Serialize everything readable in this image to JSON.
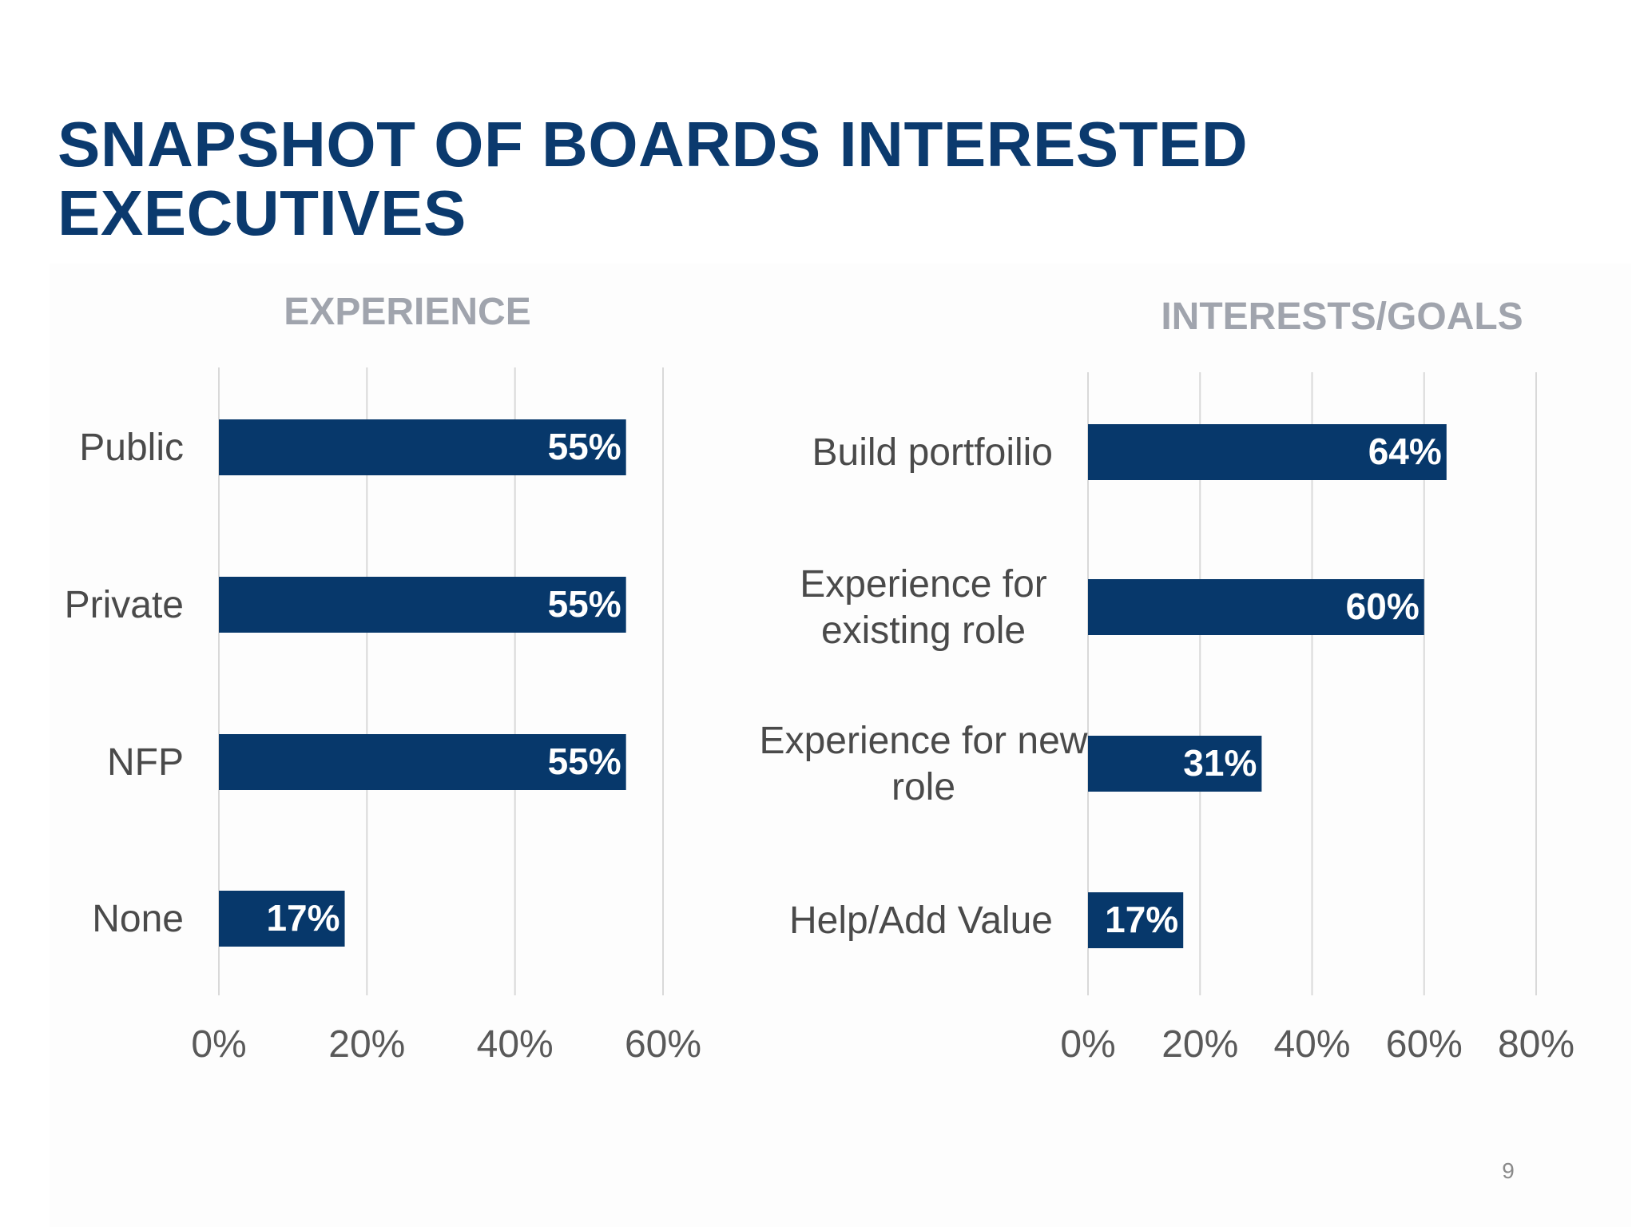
{
  "slide": {
    "title_line1": "SNAPSHOT OF BOARDS INTERESTED",
    "title_line2": "EXECUTIVES",
    "page_number": "9",
    "colors": {
      "title": "#0b3a6e",
      "bar": "#07386b",
      "subtitle": "#a0a4ad",
      "category_text": "#4a4a4a",
      "grid": "#d9d9d9",
      "data_label": "#ffffff"
    }
  },
  "chart_data": [
    {
      "type": "bar",
      "orientation": "horizontal",
      "title": "EXPERIENCE",
      "categories": [
        "Public",
        "Private",
        "NFP",
        "None"
      ],
      "values": [
        55,
        55,
        55,
        17
      ],
      "data_labels": [
        "55%",
        "55%",
        "55%",
        "17%"
      ],
      "xlim": [
        0,
        60
      ],
      "x_ticks": [
        0,
        20,
        40,
        60
      ],
      "x_tick_labels": [
        "0%",
        "20%",
        "40%",
        "60%"
      ],
      "unit": "%",
      "grid": true,
      "legend": false
    },
    {
      "type": "bar",
      "orientation": "horizontal",
      "title": "INTERESTS/GOALS",
      "categories": [
        "Build portfoilio",
        "Experience for existing role",
        "Experience for new role",
        "Help/Add Value"
      ],
      "category_lines": [
        [
          "Build portfoilio"
        ],
        [
          "Experience for",
          "existing role"
        ],
        [
          "Experience for new",
          "role"
        ],
        [
          "Help/Add Value"
        ]
      ],
      "values": [
        64,
        60,
        31,
        17
      ],
      "data_labels": [
        "64%",
        "60%",
        "31%",
        "17%"
      ],
      "xlim": [
        0,
        80
      ],
      "x_ticks": [
        0,
        20,
        40,
        60,
        80
      ],
      "x_tick_labels": [
        "0%",
        "20%",
        "40%",
        "60%",
        "80%"
      ],
      "unit": "%",
      "grid": true,
      "legend": false
    }
  ]
}
